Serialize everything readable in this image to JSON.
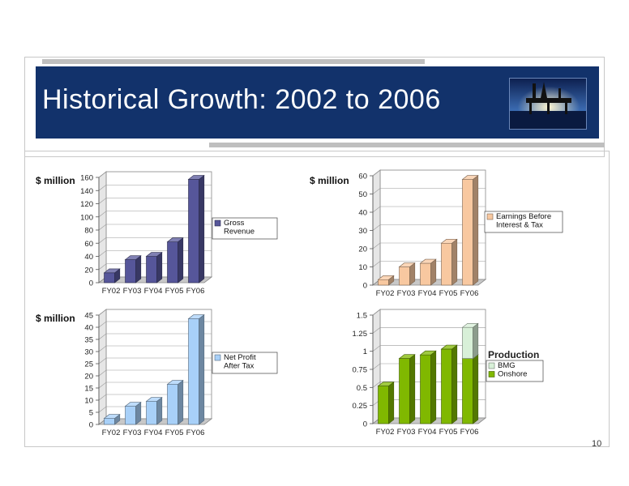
{
  "slide": {
    "title": "Historical Growth: 2002 to 2006",
    "page_number": "10"
  },
  "colors": {
    "banner": "#12326b",
    "revenue": "#56569a",
    "ebit": "#f8c8a0",
    "npat": "#a8d0f8",
    "onshore": "#80b800",
    "bmg": "#d8f0d8"
  },
  "chart_data": [
    {
      "type": "bar",
      "ylabel": "$ million",
      "categories": [
        "FY02",
        "FY03",
        "FY04",
        "FY05",
        "FY06"
      ],
      "series": [
        {
          "name": "Gross Revenue",
          "values": [
            15,
            35,
            40,
            62,
            157
          ]
        }
      ],
      "ylim": [
        0,
        160
      ],
      "yticks": [
        0,
        20,
        40,
        60,
        80,
        100,
        120,
        140,
        160
      ],
      "grid": true,
      "legend": "right"
    },
    {
      "type": "bar",
      "ylabel": "$ million",
      "categories": [
        "FY02",
        "FY03",
        "FY04",
        "FY05",
        "FY06"
      ],
      "series": [
        {
          "name": "Earnings Before Interest & Tax",
          "values": [
            3,
            10,
            12,
            23,
            58
          ]
        }
      ],
      "ylim": [
        0,
        60
      ],
      "yticks": [
        0,
        10,
        20,
        30,
        40,
        50,
        60
      ],
      "grid": true,
      "legend": "right"
    },
    {
      "type": "bar",
      "ylabel": "$ million",
      "categories": [
        "FY02",
        "FY03",
        "FY04",
        "FY05",
        "FY06"
      ],
      "series": [
        {
          "name": "Net Profit After Tax",
          "values": [
            2.5,
            7.5,
            9.5,
            16.5,
            43.5
          ]
        }
      ],
      "ylim": [
        0,
        45
      ],
      "yticks": [
        0,
        5,
        10,
        15,
        20,
        25,
        30,
        35,
        40,
        45
      ],
      "grid": true,
      "legend": "right"
    },
    {
      "type": "bar",
      "stacked": true,
      "title": "Production",
      "categories": [
        "FY02",
        "FY03",
        "FY04",
        "FY05",
        "FY06"
      ],
      "series": [
        {
          "name": "Onshore",
          "values": [
            0.52,
            0.9,
            0.95,
            1.03,
            0.9
          ]
        },
        {
          "name": "BMG",
          "values": [
            0,
            0,
            0,
            0,
            0.43
          ]
        }
      ],
      "ylim": [
        0,
        1.5
      ],
      "yticks": [
        "0",
        "0.25",
        "0.5",
        "0.75",
        "1",
        "1.25",
        "1.5"
      ],
      "grid": true,
      "legend": "right"
    }
  ]
}
